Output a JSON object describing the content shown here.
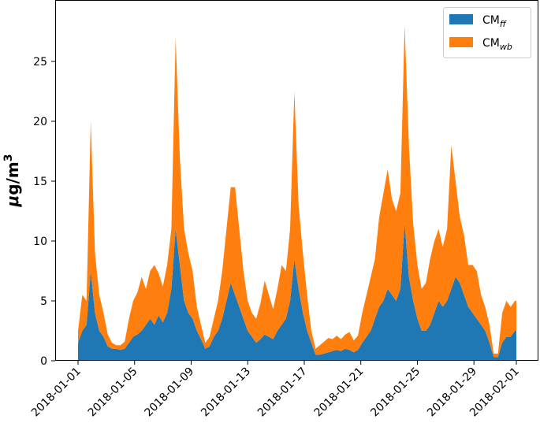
{
  "chart_data": {
    "type": "area",
    "stacked": true,
    "title": "",
    "xlabel": "",
    "ylabel": "μg/m³",
    "ylabel_parts": {
      "mu": "μ",
      "base": "g/m",
      "sup": "3"
    },
    "xlim": [
      "2018-01-01",
      "2018-02-01"
    ],
    "ylim": [
      0,
      29
    ],
    "yticks": [
      0,
      5,
      10,
      15,
      20,
      25
    ],
    "xticks": [
      "2018-01-01",
      "2018-01-05",
      "2018-01-09",
      "2018-01-13",
      "2018-01-17",
      "2018-01-21",
      "2018-01-25",
      "2018-01-29",
      "2018-02-01"
    ],
    "grid": false,
    "legend_position": "top-right",
    "x_unit": "day-of-january-2018",
    "x": [
      1.0,
      1.3,
      1.6,
      1.9,
      2.2,
      2.5,
      2.8,
      3.1,
      3.4,
      3.7,
      4.0,
      4.3,
      4.6,
      4.9,
      5.2,
      5.5,
      5.8,
      6.1,
      6.4,
      6.7,
      7.0,
      7.3,
      7.6,
      7.9,
      8.2,
      8.5,
      8.8,
      9.1,
      9.4,
      9.7,
      10.0,
      10.3,
      10.6,
      10.9,
      11.2,
      11.5,
      11.8,
      12.1,
      12.4,
      12.7,
      13.0,
      13.3,
      13.6,
      13.9,
      14.2,
      14.5,
      14.8,
      15.1,
      15.4,
      15.7,
      16.0,
      16.3,
      16.6,
      16.9,
      17.2,
      17.5,
      17.8,
      18.1,
      18.4,
      18.7,
      19.0,
      19.3,
      19.6,
      19.9,
      20.2,
      20.5,
      20.8,
      21.1,
      21.4,
      21.7,
      22.0,
      22.3,
      22.6,
      22.9,
      23.2,
      23.5,
      23.8,
      24.1,
      24.4,
      24.7,
      25.0,
      25.3,
      25.6,
      25.9,
      26.2,
      26.5,
      26.8,
      27.1,
      27.4,
      27.7,
      28.0,
      28.3,
      28.6,
      28.9,
      29.2,
      29.5,
      29.8,
      30.1,
      30.4,
      30.7,
      31.0,
      31.3,
      31.6,
      31.9,
      32.0
    ],
    "series": [
      {
        "name": "CM",
        "name_sub": "ff",
        "color": "#1f77b4",
        "values": [
          1.5,
          2.5,
          3.0,
          7.5,
          4.0,
          2.5,
          2.0,
          1.2,
          1.0,
          1.0,
          0.9,
          1.0,
          1.5,
          2.0,
          2.2,
          2.5,
          3.0,
          3.5,
          3.0,
          3.8,
          3.2,
          4.0,
          6.0,
          11.0,
          8.0,
          5.0,
          4.0,
          3.5,
          2.5,
          1.8,
          1.0,
          1.2,
          2.0,
          2.5,
          3.5,
          5.0,
          6.5,
          5.5,
          4.5,
          3.5,
          2.5,
          2.0,
          1.5,
          1.8,
          2.2,
          2.0,
          1.8,
          2.5,
          3.0,
          3.5,
          5.0,
          8.5,
          6.0,
          4.0,
          2.5,
          1.5,
          0.5,
          0.5,
          0.6,
          0.7,
          0.8,
          0.9,
          0.8,
          1.0,
          0.9,
          0.7,
          0.9,
          1.5,
          2.0,
          2.5,
          3.5,
          4.5,
          5.0,
          6.0,
          5.5,
          5.0,
          6.0,
          11.5,
          7.0,
          5.0,
          3.5,
          2.5,
          2.5,
          3.0,
          4.0,
          5.0,
          4.5,
          5.0,
          6.0,
          7.0,
          6.5,
          5.5,
          4.5,
          4.0,
          3.5,
          3.0,
          2.5,
          1.5,
          0.3,
          0.3,
          1.5,
          2.0,
          2.0,
          2.5,
          2.5
        ]
      },
      {
        "name": "CM",
        "name_sub": "wb",
        "color": "#ff7f0e",
        "values": [
          1.0,
          3.0,
          2.0,
          12.5,
          5.0,
          3.0,
          2.0,
          1.0,
          0.5,
          0.3,
          0.4,
          0.6,
          2.0,
          3.0,
          3.5,
          4.5,
          3.0,
          4.0,
          5.0,
          3.5,
          3.0,
          4.0,
          5.0,
          16.0,
          9.0,
          6.0,
          5.0,
          4.0,
          2.0,
          1.2,
          0.5,
          0.8,
          1.5,
          2.5,
          4.0,
          6.0,
          8.0,
          9.0,
          6.5,
          4.0,
          2.5,
          2.0,
          2.0,
          3.0,
          4.5,
          3.5,
          2.5,
          3.5,
          5.0,
          4.0,
          6.0,
          14.0,
          7.0,
          5.0,
          3.0,
          1.0,
          0.5,
          0.8,
          1.0,
          1.2,
          1.0,
          1.2,
          1.0,
          1.2,
          1.5,
          1.0,
          1.2,
          2.5,
          3.5,
          4.5,
          5.0,
          7.5,
          9.0,
          10.0,
          8.0,
          7.5,
          8.0,
          16.5,
          11.0,
          6.5,
          4.5,
          3.5,
          4.0,
          5.5,
          6.0,
          6.0,
          5.0,
          6.0,
          12.0,
          8.0,
          5.5,
          5.0,
          3.5,
          4.0,
          4.0,
          2.5,
          2.0,
          1.5,
          0.3,
          0.3,
          2.5,
          3.0,
          2.5,
          2.5,
          2.5
        ]
      }
    ]
  }
}
